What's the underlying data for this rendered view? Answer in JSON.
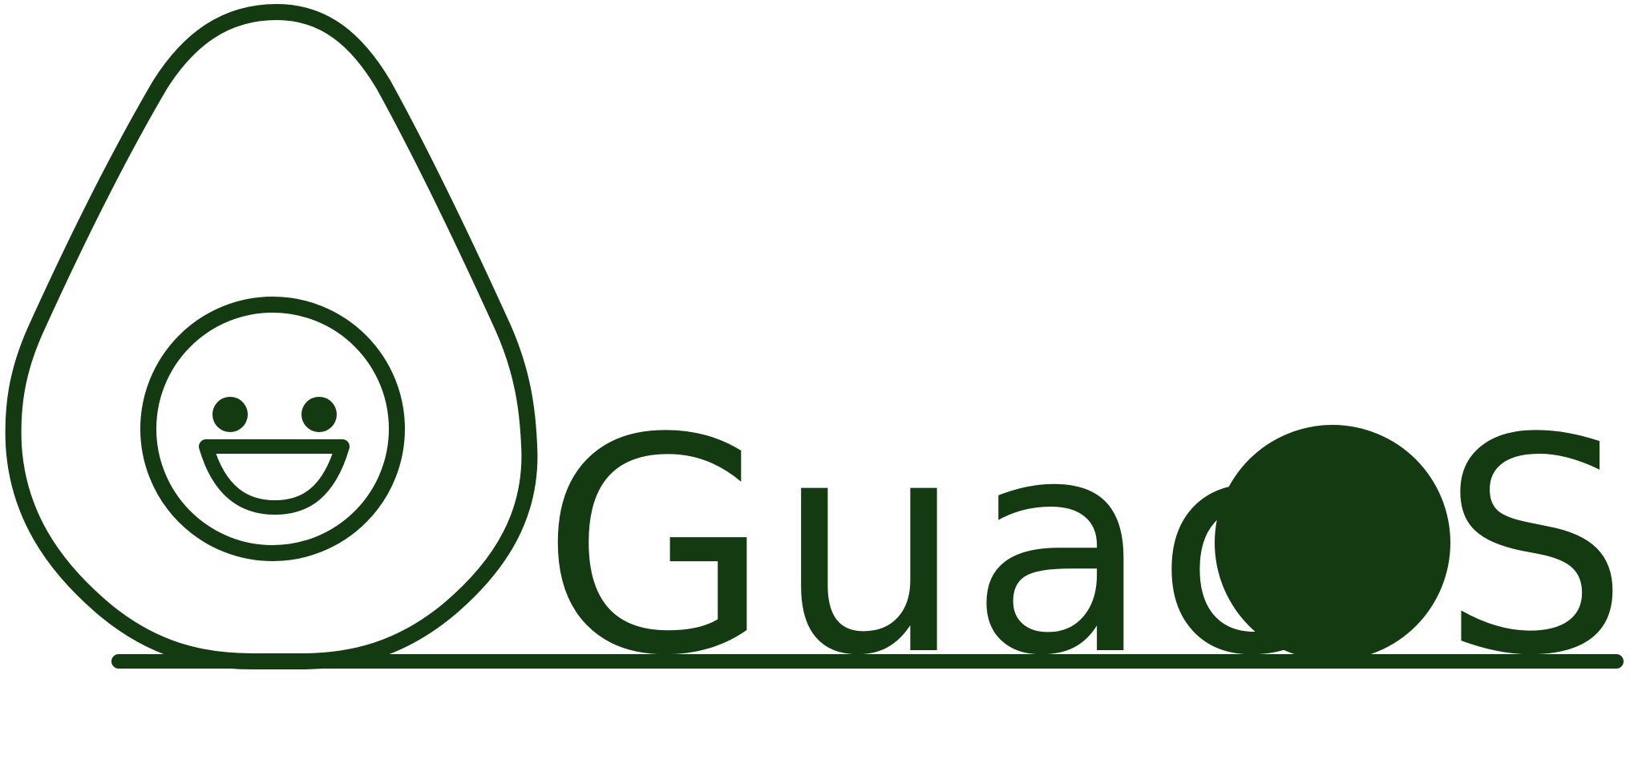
{
  "logo": {
    "wordmark_before": "Guac",
    "wordmark_after": "S",
    "mascot_icon": "smiling-avocado-icon",
    "o_shape_icon": "avocado-pit-icon",
    "color": "#133a11",
    "background": "#ffffff"
  }
}
